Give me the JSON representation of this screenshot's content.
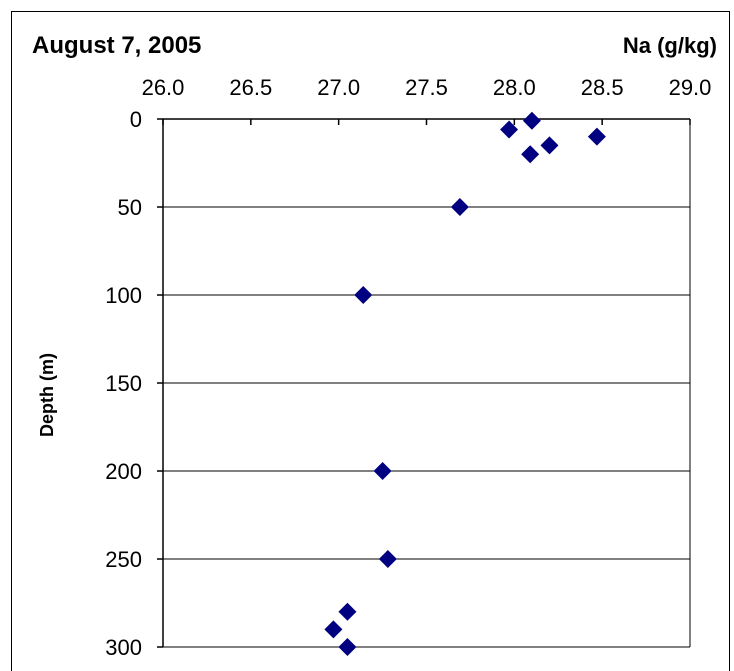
{
  "chart_data": {
    "type": "scatter",
    "title": "August 7, 2005",
    "xlabel": "Na  (g/kg)",
    "ylabel": "Depth (m)",
    "xlim": [
      26.0,
      29.0
    ],
    "ylim": [
      0,
      300
    ],
    "x_axis_position": "top",
    "y_axis_inverted": true,
    "x_ticks": [
      "26.0",
      "26.5",
      "27.0",
      "27.5",
      "28.0",
      "28.5",
      "29.0"
    ],
    "y_ticks": [
      "0",
      "50",
      "100",
      "150",
      "200",
      "250",
      "300"
    ],
    "grid": "horizontal",
    "legend": "none",
    "marker": "diamond",
    "marker_color": "#000080",
    "series": [
      {
        "points": [
          {
            "x": 28.1,
            "y": 1
          },
          {
            "x": 27.97,
            "y": 6
          },
          {
            "x": 28.47,
            "y": 10
          },
          {
            "x": 28.2,
            "y": 15
          },
          {
            "x": 28.09,
            "y": 20
          },
          {
            "x": 27.69,
            "y": 50
          },
          {
            "x": 27.14,
            "y": 100
          },
          {
            "x": 27.25,
            "y": 200
          },
          {
            "x": 27.28,
            "y": 250
          },
          {
            "x": 27.05,
            "y": 280
          },
          {
            "x": 26.97,
            "y": 290
          },
          {
            "x": 27.05,
            "y": 300
          }
        ]
      }
    ]
  }
}
